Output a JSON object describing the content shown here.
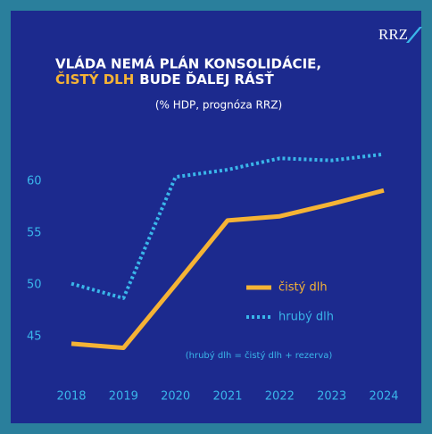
{
  "logo": "RRZ",
  "chart_data": {
    "type": "line",
    "title": [
      "VLÁDA NEMÁ PLÁN KONSOLIDÁCIE,",
      "ČISTÝ DLH",
      "BUDE ĎALEJ RÁSŤ"
    ],
    "subtitle": "(% HDP, prognóza RRZ)",
    "annotation": "(hrubý dlh = čistý dlh + rezerva)",
    "categories": [
      "2018",
      "2019",
      "2020",
      "2021",
      "2022",
      "2023",
      "2024"
    ],
    "series": [
      {
        "name": "čistý dlh",
        "color": "#f5b335",
        "style": "solid",
        "values": [
          44.3,
          43.9,
          50.0,
          56.2,
          56.6,
          57.8,
          59.1
        ]
      },
      {
        "name": "hrubý dlh",
        "color": "#3ab6ea",
        "style": "dotted",
        "values": [
          50.1,
          48.7,
          60.4,
          61.1,
          62.2,
          62.0,
          62.6
        ]
      }
    ],
    "ylim": [
      43,
      63
    ],
    "yticks": [
      45,
      50,
      55,
      60
    ],
    "grid": false
  }
}
